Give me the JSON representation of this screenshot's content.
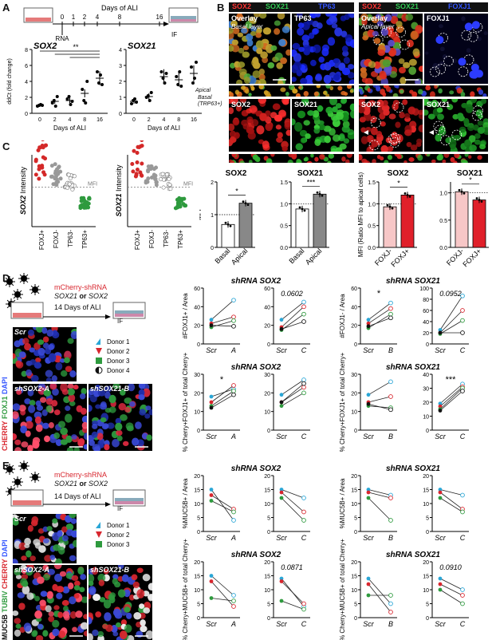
{
  "panels": {
    "A": "A",
    "B": "B",
    "C": "C",
    "D": "D",
    "E": "E"
  },
  "panelA": {
    "timeline_label": "Days of ALI",
    "timepoints": [
      "0",
      "1",
      "2",
      "4",
      "8",
      "16"
    ],
    "rna_label": "RNA",
    "if_label": "IF",
    "ylabel": "ddCt (fold change)",
    "xlabel": "Days of ALI",
    "sig": "**",
    "charts": [
      {
        "title": "SOX2",
        "yticks": [
          "0",
          "2",
          "4",
          "6",
          "8"
        ],
        "xticks": [
          "0",
          "2",
          "4",
          "8",
          "16"
        ],
        "ylim": [
          0,
          8
        ],
        "points": [
          [
            0,
            [
              0.9,
              1.0,
              1.1,
              1.0
            ]
          ],
          [
            2,
            [
              1.3,
              1.6,
              0.9,
              2.1
            ]
          ],
          [
            4,
            [
              1.8,
              2.1,
              1.1,
              1.5
            ]
          ],
          [
            8,
            [
              3.0,
              1.6,
              1.3,
              4.0
            ]
          ],
          [
            16,
            [
              5.2,
              3.8,
              4.8,
              3.6
            ]
          ]
        ],
        "means": [
          1.0,
          1.5,
          1.6,
          2.5,
          4.4
        ]
      },
      {
        "title": "SOX21",
        "yticks": [
          "0",
          "1",
          "2",
          "3",
          "4"
        ],
        "xticks": [
          "0",
          "2",
          "4",
          "8",
          "16"
        ],
        "ylim": [
          0,
          4
        ],
        "points": [
          [
            0,
            [
              0.6,
              0.8,
              0.9,
              0.7
            ]
          ],
          [
            2,
            [
              1.0,
              1.1,
              0.8,
              1.3
            ]
          ],
          [
            4,
            [
              2.6,
              2.2,
              1.9,
              2.5
            ]
          ],
          [
            8,
            [
              2.3,
              1.8,
              2.6,
              1.7
            ]
          ],
          [
            16,
            [
              2.9,
              1.9,
              2.2,
              3.2
            ]
          ]
        ],
        "means": [
          0.75,
          1.05,
          2.3,
          2.1,
          2.5
        ]
      }
    ]
  },
  "panelB": {
    "left": {
      "markers": [
        "SOX2",
        "SOX21",
        "TP63"
      ],
      "overlay": "Overlay",
      "layer": "Basal layer",
      "tp63": "TP63",
      "xz_left": "Apical",
      "xz_mid": "Basal",
      "xz_sub": "(TRP63+)",
      "sox2": "SOX2",
      "sox21": "SOX21"
    },
    "right": {
      "markers": [
        "SOX2",
        "SOX21",
        "FOXJ1"
      ],
      "overlay": "Overlay",
      "layer": "Apical layer",
      "foxj1": "FOXJ1",
      "sox2": "SOX2",
      "sox21": "SOX21"
    },
    "bars": [
      {
        "title": "SOX2",
        "ylabel": "MFI",
        "categories": [
          "Basal",
          "Apical"
        ],
        "values": [
          0.7,
          1.35
        ],
        "ylim": [
          0,
          2
        ],
        "yticks": [
          "0",
          "1",
          "2"
        ],
        "sig": "*",
        "colors": [
          "#ffffff",
          "#888888"
        ]
      },
      {
        "title": "SOX21",
        "ylabel": "",
        "categories": [
          "Basal",
          "Apical"
        ],
        "values": [
          0.88,
          1.22
        ],
        "ylim": [
          0,
          1.5
        ],
        "yticks": [
          "0.0",
          "0.5",
          "1.0",
          "1.5"
        ],
        "sig": "***",
        "colors": [
          "#ffffff",
          "#888888"
        ]
      },
      {
        "title": "SOX2",
        "ylabel": "MFI (Ratio MFI to apical cells)",
        "categories": [
          "FOXJ-",
          "FOXJ+"
        ],
        "values": [
          0.93,
          1.2
        ],
        "ylim": [
          0,
          1.5
        ],
        "yticks": [
          "0.0",
          "0.5",
          "1.0",
          "1.5"
        ],
        "sig": "*",
        "colors": [
          "#f7c7c7",
          "#e0202a"
        ]
      },
      {
        "title": "SOX21",
        "ylabel": "",
        "categories": [
          "FOXJ-",
          "FOXJ+"
        ],
        "values": [
          1.02,
          0.87
        ],
        "ylim": [
          0,
          1.2
        ],
        "yticks": [
          "0.0",
          "0.5",
          "1.0"
        ],
        "sig": "*",
        "colors": [
          "#f7c7c7",
          "#e0202a"
        ]
      }
    ]
  },
  "panelC": {
    "mfi": "MFI",
    "charts": [
      {
        "ylabel_marker": "SOX2",
        "ylabel_rest": " Intensity",
        "categories": [
          "FOXJ+",
          "FOXJ-",
          "TP63-",
          "TP63+"
        ],
        "colors": [
          "#d42828",
          "#999999",
          "#ffffff",
          "#2e9a3e"
        ]
      },
      {
        "ylabel_marker": "SOX21",
        "ylabel_rest": " Intensity",
        "categories": [
          "FOXJ+",
          "FOXJ-",
          "TP63-",
          "TP63+"
        ],
        "colors": [
          "#d42828",
          "#999999",
          "#ffffff",
          "#2e9a3e"
        ]
      }
    ]
  },
  "panelD": {
    "construct": "mCherry-shRNA",
    "genes_a": "SOX21",
    "genes_or": " or ",
    "genes_b": "SOX2",
    "days": "14 Days of ALI",
    "if_label": "IF",
    "img_scr": "Scr",
    "img_sox2": "shSOX2-A",
    "img_sox21": "shSOX21-B",
    "stain_dapi": "DAPI",
    "stain_foxj1": "FOXJ1",
    "stain_cherry": "CHERRY",
    "donors": [
      "Donor 1",
      "Donor 2",
      "Donor 3",
      "Donor 4"
    ],
    "plots": [
      {
        "title": "shRNA SOX2",
        "ylabel": "#FOXJ1+ / Area",
        "x": [
          "Scr",
          "A"
        ],
        "yticks": [
          "0",
          "20",
          "40",
          "60"
        ],
        "sig": "",
        "pairs": [
          [
            26,
            47
          ],
          [
            22,
            29
          ],
          [
            18,
            25
          ],
          [
            20,
            19
          ]
        ]
      },
      {
        "title": "",
        "ylabel": "",
        "x": [
          "Scr",
          "C"
        ],
        "yticks": [
          "0",
          "20",
          "40",
          "60"
        ],
        "sig": "0.0602",
        "pairs": [
          [
            26,
            45
          ],
          [
            18,
            40
          ],
          [
            15,
            32
          ],
          [
            16,
            24
          ]
        ]
      },
      {
        "title": "shRNA SOX21",
        "ylabel": "#FOXJ1- / Area",
        "x": [
          "Scr",
          "B"
        ],
        "yticks": [
          "0",
          "20",
          "40",
          "60"
        ],
        "sig": "*",
        "pairs": [
          [
            26,
            44
          ],
          [
            22,
            38
          ],
          [
            17,
            32
          ],
          [
            19,
            28
          ]
        ]
      },
      {
        "title": "",
        "ylabel": "",
        "x": [
          "Scr",
          "C"
        ],
        "yticks": [
          "0",
          "20",
          "40",
          "60",
          "80",
          "100"
        ],
        "sig": "0.0952",
        "pairs": [
          [
            25,
            86
          ],
          [
            20,
            60
          ],
          [
            18,
            42
          ],
          [
            20,
            20
          ]
        ]
      },
      {
        "title": "shRNA SOX2",
        "ylabel": "% Cherry+FOXJ1+ of total Cherry+",
        "x": [
          "Scr",
          "A"
        ],
        "yticks": [
          "0",
          "10",
          "20",
          "30"
        ],
        "sig": "*",
        "pairs": [
          [
            18,
            22
          ],
          [
            15,
            24
          ],
          [
            13,
            21
          ],
          [
            12,
            19
          ]
        ]
      },
      {
        "title": "",
        "ylabel": "",
        "x": [
          "Scr",
          "C"
        ],
        "yticks": [
          "0",
          "10",
          "20",
          "30"
        ],
        "sig": "",
        "pairs": [
          [
            19,
            27
          ],
          [
            15,
            23
          ],
          [
            13,
            20
          ],
          [
            15,
            25
          ]
        ]
      },
      {
        "title": "shRNA SOX21",
        "ylabel": "% Cherry+FOXJ1+ of total Cherry+",
        "x": [
          "Scr",
          "B"
        ],
        "yticks": [
          "0",
          "10",
          "20",
          "30"
        ],
        "sig": "",
        "pairs": [
          [
            19,
            26
          ],
          [
            15,
            18
          ],
          [
            13,
            12
          ],
          [
            14,
            11
          ]
        ]
      },
      {
        "title": "",
        "ylabel": "",
        "x": [
          "Scr",
          "C"
        ],
        "yticks": [
          "0",
          "10",
          "20",
          "30",
          "40"
        ],
        "sig": "***",
        "pairs": [
          [
            19,
            33
          ],
          [
            17,
            31
          ],
          [
            15,
            30
          ],
          [
            14,
            28
          ]
        ]
      }
    ]
  },
  "panelE": {
    "construct": "mCherry-shRNA",
    "genes_a": "SOX21",
    "genes_or": " or ",
    "genes_b": "SOX2",
    "days": "14 Days of ALI",
    "if_label": "IF",
    "img_scr": "Scr",
    "img_sox2": "shSOX2-A",
    "img_sox21": "shSOX21-B",
    "stain_dapi": "DAPI",
    "stain_cherry": "CHERRY",
    "stain_tubiv": "TUBIV",
    "stain_muc5b": "MUC5B",
    "donors": [
      "Donor 1",
      "Donor 2",
      "Donor 3"
    ],
    "plots": [
      {
        "title": "shRNA SOX2",
        "ylabel": "%MUC5B+ / Area",
        "x": [
          "Scr",
          "A"
        ],
        "yticks": [
          "0",
          "5",
          "10",
          "15",
          "20"
        ],
        "sig": "",
        "pairs": [
          [
            15,
            4
          ],
          [
            13,
            8
          ],
          [
            11,
            7
          ]
        ]
      },
      {
        "title": "",
        "ylabel": "",
        "x": [
          "Scr",
          "C"
        ],
        "yticks": [
          "0",
          "5",
          "10",
          "15",
          "20"
        ],
        "sig": "",
        "pairs": [
          [
            15,
            12
          ],
          [
            14,
            7
          ],
          [
            12,
            4
          ]
        ]
      },
      {
        "title": "shRNA SOX21",
        "ylabel": "%MUC5B+ / Area",
        "x": [
          "Scr",
          "B"
        ],
        "yticks": [
          "0",
          "5",
          "10",
          "15",
          "20"
        ],
        "sig": "",
        "pairs": [
          [
            15,
            13
          ],
          [
            14,
            12
          ],
          [
            12,
            4
          ]
        ]
      },
      {
        "title": "",
        "ylabel": "",
        "x": [
          "Scr",
          "C"
        ],
        "yticks": [
          "0",
          "5",
          "10",
          "15",
          "20"
        ],
        "sig": "",
        "pairs": [
          [
            15,
            13
          ],
          [
            14,
            8
          ],
          [
            12,
            7
          ]
        ]
      },
      {
        "title": "shRNA SOX2",
        "ylabel": "% Cherry+MUC5B+ of total Cherry+",
        "x": [
          "Scr",
          "A"
        ],
        "yticks": [
          "0",
          "5",
          "10",
          "15",
          "20"
        ],
        "sig": "",
        "pairs": [
          [
            15,
            8
          ],
          [
            13,
            4
          ],
          [
            7,
            6
          ]
        ]
      },
      {
        "title": "",
        "ylabel": "",
        "x": [
          "Scr",
          "C"
        ],
        "yticks": [
          "0",
          "5",
          "10",
          "15",
          "20"
        ],
        "sig": "0.0871",
        "pairs": [
          [
            14,
            4
          ],
          [
            13,
            5
          ],
          [
            6,
            3
          ]
        ]
      },
      {
        "title": "shRNA SOX21",
        "ylabel": "% Cherry+MUC5B+ of total Cherry+",
        "x": [
          "Scr",
          "B"
        ],
        "yticks": [
          "0",
          "5",
          "10",
          "15",
          "20"
        ],
        "sig": "",
        "pairs": [
          [
            14,
            5
          ],
          [
            12,
            2
          ],
          [
            8,
            8
          ]
        ]
      },
      {
        "title": "",
        "ylabel": "",
        "x": [
          "Scr",
          "C"
        ],
        "yticks": [
          "0",
          "5",
          "10",
          "15",
          "20"
        ],
        "sig": "0.0910",
        "pairs": [
          [
            14,
            10
          ],
          [
            12,
            8
          ],
          [
            10,
            5
          ]
        ]
      }
    ]
  },
  "chart_data": [
    {
      "type": "scatter",
      "title": "SOX2",
      "xlabel": "Days of ALI",
      "ylabel": "ddCt (fold change)",
      "x": [
        0,
        2,
        4,
        8,
        16
      ],
      "means": [
        1.0,
        1.5,
        1.6,
        2.5,
        4.4
      ],
      "ylim": [
        0,
        8
      ]
    },
    {
      "type": "scatter",
      "title": "SOX21",
      "xlabel": "Days of ALI",
      "ylabel": "ddCt (fold change)",
      "x": [
        0,
        2,
        4,
        8,
        16
      ],
      "means": [
        0.75,
        1.05,
        2.3,
        2.1,
        2.5
      ],
      "ylim": [
        0,
        4
      ]
    },
    {
      "type": "bar",
      "title": "SOX2",
      "categories": [
        "Basal",
        "Apical"
      ],
      "values": [
        0.7,
        1.35
      ],
      "ylabel": "MFI"
    },
    {
      "type": "bar",
      "title": "SOX21",
      "categories": [
        "Basal",
        "Apical"
      ],
      "values": [
        0.88,
        1.22
      ]
    },
    {
      "type": "bar",
      "title": "SOX2",
      "categories": [
        "FOXJ-",
        "FOXJ+"
      ],
      "values": [
        0.93,
        1.2
      ],
      "ylabel": "MFI (Ratio MFI to apical cells)"
    },
    {
      "type": "bar",
      "title": "SOX21",
      "categories": [
        "FOXJ-",
        "FOXJ+"
      ],
      "values": [
        1.02,
        0.87
      ]
    }
  ]
}
